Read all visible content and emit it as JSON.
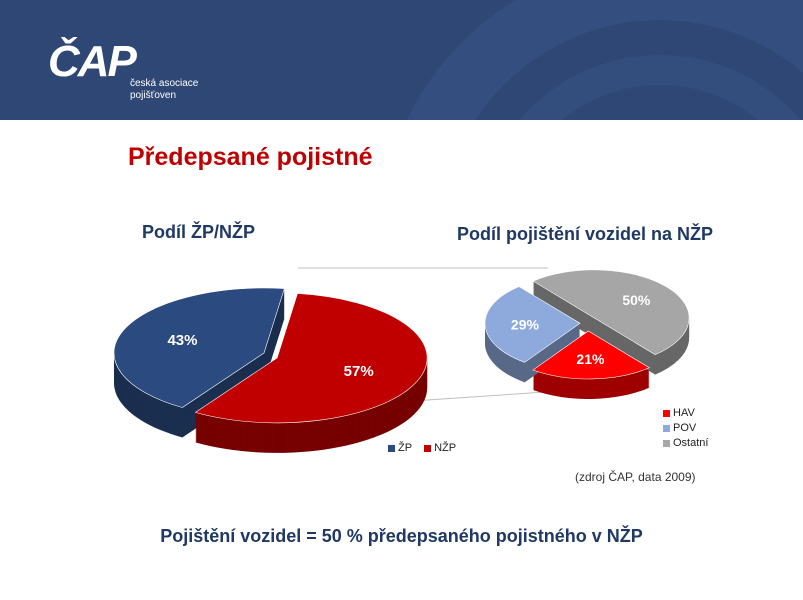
{
  "header": {
    "logo_text": "ČAP",
    "logo_subtitle_line1": "česká asociace",
    "logo_subtitle_line2": "pojišťoven",
    "background_color": "#2e4775"
  },
  "slide": {
    "title": "Předepsané pojistné",
    "source_note": "(zdroj ČAP, data 2009)",
    "footer": "Pojištění vozidel = 50 % předepsaného pojistného v NŽP"
  },
  "chart_data": [
    {
      "type": "pie",
      "title": "Podíl ŽP/NŽP",
      "categories": [
        "ŽP",
        "NŽP"
      ],
      "values": [
        43,
        57
      ],
      "labels": [
        "43%",
        "57%"
      ],
      "colors": [
        "#2b4a80",
        "#c00000"
      ],
      "legend_placement": "bottom-right"
    },
    {
      "type": "pie",
      "title": "Podíl pojištění vozidel na NŽP",
      "categories": [
        "HAV",
        "POV",
        "Ostatní"
      ],
      "values": [
        21,
        29,
        50
      ],
      "labels": [
        "21%",
        "29%",
        "50%"
      ],
      "colors": [
        "#ff0000",
        "#8ea9db",
        "#a6a6a6"
      ],
      "legend_placement": "bottom-right"
    }
  ]
}
